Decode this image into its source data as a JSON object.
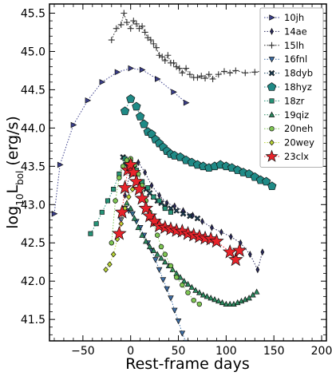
{
  "chart_data": {
    "type": "scatter",
    "xlabel": "Rest-frame days",
    "ylabel_main": "log",
    "ylabel_sub1": "10",
    "ylabel_mid": "L",
    "ylabel_sub2": "bol",
    "ylabel_tail": " (erg/s)",
    "xlim": [
      -85,
      205
    ],
    "ylim": [
      41.22,
      45.62
    ],
    "xticks": [
      -50,
      0,
      50,
      100,
      150,
      200
    ],
    "xtick_labels": [
      "−50",
      "0",
      "50",
      "100",
      "150",
      "200"
    ],
    "yticks": [
      41.5,
      42.0,
      42.5,
      43.0,
      43.5,
      44.0,
      44.5,
      45.0,
      45.5
    ],
    "ytick_labels": [
      "41.5",
      "42.0",
      "42.5",
      "43.0",
      "43.5",
      "44.0",
      "44.5",
      "45.0",
      "45.5"
    ],
    "legend_position": "top-right",
    "series": [
      {
        "name": "10jh",
        "color": "#3b3f8c",
        "marker": "tri-right",
        "line": true,
        "x": [
          -80,
          -74,
          -60,
          -45,
          -30,
          -14,
          0,
          12,
          28,
          45,
          58
        ],
        "y": [
          42.88,
          43.52,
          44.04,
          44.36,
          44.6,
          44.73,
          44.78,
          44.76,
          44.64,
          44.47,
          44.33
        ]
      },
      {
        "name": "14ae",
        "color": "#2b2b5e",
        "marker": "thin-diamond",
        "line": true,
        "x": [
          -6,
          0,
          8,
          15,
          22,
          30,
          38,
          46,
          55,
          65,
          75,
          85,
          95,
          105,
          115,
          125,
          133,
          138
        ],
        "y": [
          43.12,
          43.45,
          43.55,
          43.42,
          43.25,
          43.12,
          43.02,
          42.98,
          42.92,
          42.86,
          42.78,
          42.7,
          42.64,
          42.58,
          42.5,
          42.35,
          42.15,
          42.38
        ]
      },
      {
        "name": "15lh",
        "color": "#333333",
        "marker": "plus",
        "line": true,
        "x": [
          -20,
          -15,
          -10,
          -7,
          -4,
          0,
          3,
          6,
          9,
          12,
          15,
          18,
          21,
          24,
          27,
          30,
          33,
          36,
          39,
          42,
          45,
          48,
          51,
          54,
          58,
          62,
          66,
          70,
          74,
          78,
          82,
          86,
          92,
          98,
          104,
          110,
          120,
          130,
          140
        ],
        "y": [
          45.15,
          45.3,
          45.35,
          45.5,
          45.38,
          45.3,
          45.4,
          45.36,
          45.3,
          45.33,
          45.25,
          45.18,
          45.15,
          45.1,
          45.05,
          44.95,
          44.93,
          44.88,
          44.95,
          44.85,
          44.85,
          44.8,
          44.78,
          44.72,
          44.78,
          44.7,
          44.66,
          44.66,
          44.68,
          44.65,
          44.7,
          44.64,
          44.7,
          44.74,
          44.72,
          44.75,
          44.72,
          44.73,
          44.75
        ]
      },
      {
        "name": "16fnl",
        "color": "#3d6ea6",
        "marker": "tri-down",
        "line": true,
        "x": [
          -10,
          -6,
          -2,
          2,
          6,
          10,
          14,
          18,
          22,
          26,
          30,
          34,
          38,
          42,
          46,
          50,
          54,
          58
        ],
        "y": [
          42.8,
          42.95,
          42.92,
          42.88,
          42.78,
          42.7,
          42.6,
          42.5,
          42.4,
          42.28,
          42.15,
          42.02,
          41.9,
          41.78,
          41.62,
          41.48,
          41.32,
          41.2
        ]
      },
      {
        "name": "18dyb",
        "color": "#1d4a66",
        "marker": "x-filled",
        "line": true,
        "x": [
          -8,
          -5,
          -2,
          1,
          4,
          8,
          12,
          16,
          20,
          24,
          28,
          32,
          36,
          42,
          48,
          55,
          62,
          70
        ],
        "y": [
          43.62,
          43.52,
          43.46,
          43.4,
          43.48,
          43.3,
          43.25,
          43.2,
          43.15,
          43.1,
          43.05,
          43.02,
          42.98,
          42.95,
          42.92,
          42.88,
          42.85,
          42.82
        ]
      },
      {
        "name": "18hyz",
        "color": "#1f8a86",
        "marker": "pentagon",
        "line": true,
        "x": [
          -6,
          0,
          6,
          10,
          14,
          18,
          22,
          26,
          30,
          34,
          38,
          42,
          46,
          52,
          58,
          64,
          70,
          76,
          82,
          88,
          94,
          100,
          106,
          112,
          118,
          124,
          130,
          136,
          142,
          148
        ],
        "y": [
          44.22,
          44.38,
          44.28,
          44.15,
          44.05,
          43.95,
          43.92,
          43.85,
          43.8,
          43.75,
          43.7,
          43.66,
          43.64,
          43.62,
          43.58,
          43.55,
          43.52,
          43.5,
          43.48,
          43.5,
          43.52,
          43.5,
          43.48,
          43.45,
          43.42,
          43.4,
          43.36,
          43.32,
          43.3,
          43.24
        ]
      },
      {
        "name": "18zr",
        "color": "#259478",
        "marker": "square",
        "line": true,
        "x": [
          -42,
          -36,
          -30,
          -24,
          -18,
          -12,
          -6,
          0,
          6,
          12,
          18,
          24,
          30,
          36,
          42
        ],
        "y": [
          42.62,
          42.75,
          42.9,
          43.05,
          43.2,
          43.4,
          43.6,
          43.55,
          43.45,
          43.3,
          43.22,
          43.1,
          43.05,
          42.95,
          42.9
        ]
      },
      {
        "name": "19qiz",
        "color": "#2a8a5f",
        "marker": "triangle",
        "line": true,
        "x": [
          -4,
          0,
          4,
          8,
          12,
          16,
          20,
          24,
          28,
          32,
          36,
          40,
          44,
          48,
          52,
          56,
          60,
          64,
          68,
          72,
          76,
          80,
          84,
          88,
          92,
          96,
          100,
          104,
          108,
          112,
          116,
          120,
          124,
          128,
          132
        ],
        "y": [
          43.02,
          42.95,
          42.82,
          42.7,
          42.6,
          42.52,
          42.45,
          42.4,
          42.35,
          42.3,
          42.25,
          42.2,
          42.15,
          42.1,
          42.05,
          42.0,
          41.96,
          41.92,
          41.88,
          41.85,
          41.82,
          41.8,
          41.78,
          41.76,
          41.74,
          41.72,
          41.7,
          41.7,
          41.7,
          41.72,
          41.74,
          41.76,
          41.78,
          41.82,
          41.86
        ]
      },
      {
        "name": "20neh",
        "color": "#7ec653",
        "marker": "circle",
        "line": true,
        "x": [
          -20,
          -16,
          -12,
          -8,
          -4,
          0,
          4,
          8,
          12,
          16,
          20,
          24,
          28,
          32,
          36,
          42,
          48,
          54,
          60,
          66,
          72
        ],
        "y": [
          42.5,
          43.05,
          43.35,
          43.5,
          43.58,
          43.6,
          43.52,
          43.4,
          43.25,
          43.05,
          42.9,
          42.75,
          42.6,
          42.45,
          42.35,
          42.2,
          42.05,
          41.95,
          41.85,
          41.75,
          41.7
        ]
      },
      {
        "name": "20wey",
        "color": "#b9d533",
        "marker": "diamond",
        "line": true,
        "x": [
          -26,
          -22,
          -18,
          -14,
          -10,
          -6,
          -2,
          2
        ],
        "y": [
          42.15,
          42.22,
          42.35,
          42.55,
          42.75,
          42.95,
          43.1,
          43.2
        ]
      },
      {
        "name": "23clx",
        "color": "#e8232a",
        "marker": "star",
        "line": true,
        "x": [
          -12,
          -9,
          -6,
          -3,
          0,
          3,
          6,
          9,
          12,
          16,
          20,
          25,
          30,
          36,
          42,
          48,
          54,
          60,
          66,
          72,
          78,
          84,
          90,
          104,
          110,
          114
        ],
        "y": [
          42.62,
          42.9,
          43.22,
          43.45,
          43.52,
          43.42,
          43.3,
          43.2,
          43.08,
          42.95,
          42.85,
          42.78,
          42.72,
          42.7,
          42.68,
          42.66,
          42.65,
          42.62,
          42.6,
          42.58,
          42.56,
          42.55,
          42.52,
          42.38,
          42.28,
          42.4
        ]
      }
    ]
  }
}
